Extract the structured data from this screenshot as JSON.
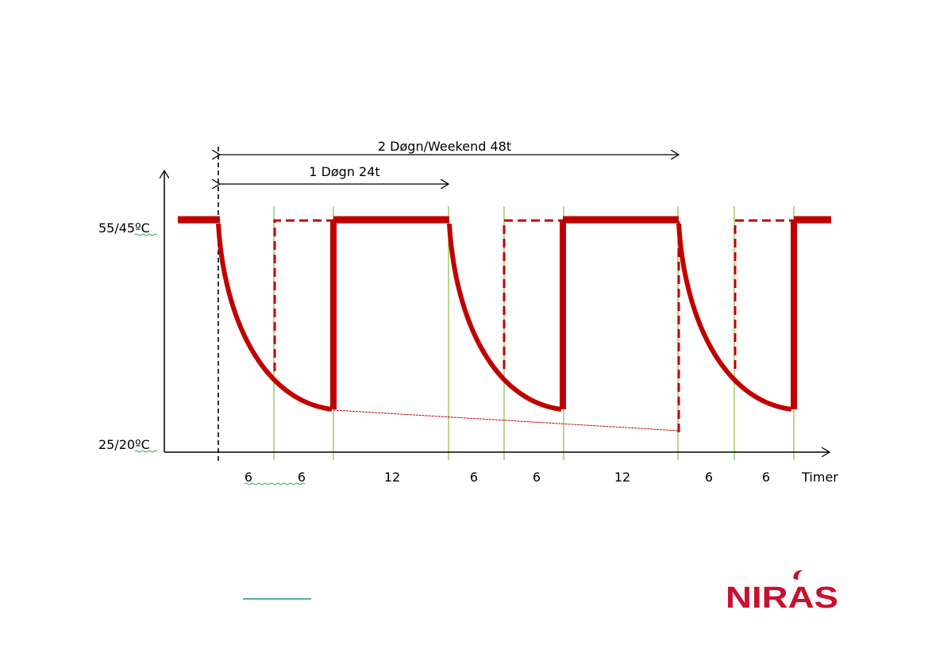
{
  "diagram": {
    "y_labels": {
      "high": "55/45ºC",
      "low": "25/20ºC"
    },
    "spans": {
      "two_day": "2 Døgn/Weekend 48t",
      "one_day": "1 Døgn 24t"
    },
    "interval_labels": [
      "6",
      "6",
      "12",
      "6",
      "6",
      "12",
      "6",
      "6"
    ],
    "x_unit": "Timer",
    "colors": {
      "curve": "#c00000",
      "divider": "#92c050",
      "axis": "#000000"
    }
  },
  "logo": {
    "text": "NIRAS",
    "color": "#c8102e"
  }
}
